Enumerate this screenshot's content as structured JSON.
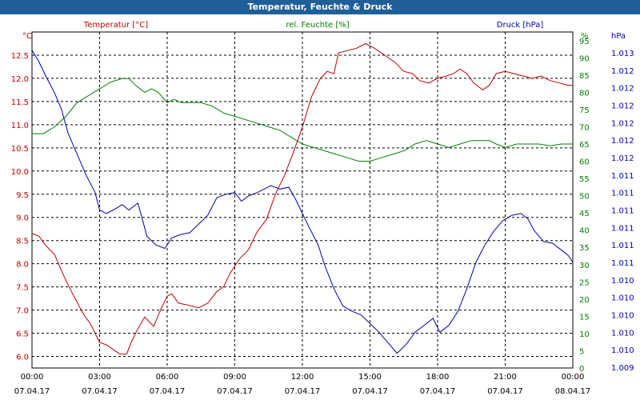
{
  "window": {
    "title": "Temperatur, Feuchte & Druck"
  },
  "colors": {
    "temperature": "#c00000",
    "humidity": "#008000",
    "pressure": "#0000b0",
    "grid": "#000000",
    "titlebar": "#1f5f99"
  },
  "chart_data": {
    "type": "line",
    "title": "Temperatur, Feuchte & Druck",
    "grid": true,
    "x_ticks": [
      {
        "time": "00:00",
        "date": "07.04.17"
      },
      {
        "time": "03:00",
        "date": "07.04.17"
      },
      {
        "time": "06:00",
        "date": "07.04.17"
      },
      {
        "time": "09:00",
        "date": "07.04.17"
      },
      {
        "time": "12:00",
        "date": "07.04.17"
      },
      {
        "time": "15:00",
        "date": "07.04.17"
      },
      {
        "time": "18:00",
        "date": "07.04.17"
      },
      {
        "time": "21:00",
        "date": "07.04.17"
      },
      {
        "time": "00:00",
        "date": "08.04.17"
      }
    ],
    "x_range_hours": [
      0,
      24
    ],
    "axes": {
      "temperature": {
        "unit": "°C",
        "ylim": [
          5.75,
          13.0
        ],
        "ticks": [
          "12.5",
          "12.0",
          "11.5",
          "11.0",
          "10.5",
          "10.0",
          "9.5",
          "9.0",
          "8.5",
          "8.0",
          "7.5",
          "7.0",
          "6.5",
          "6.0"
        ]
      },
      "humidity": {
        "unit": "%",
        "ylim": [
          0,
          97.5
        ],
        "ticks": [
          "95",
          "90",
          "85",
          "80",
          "75",
          "70",
          "65",
          "60",
          "55",
          "50",
          "45",
          "40",
          "35",
          "30",
          "25",
          "20",
          "15",
          "10",
          "5",
          "0"
        ]
      },
      "pressure": {
        "unit": "hPa",
        "ticks": [
          "1.013",
          "1.012",
          "1.012",
          "1.012",
          "1.012",
          "1.012",
          "1.012",
          "1.011",
          "1.011",
          "1.011",
          "1.011",
          "1.011",
          "1.011",
          "1.010",
          "1.010",
          "1.010",
          "1.010",
          "1.010",
          "1.009"
        ]
      }
    },
    "series": [
      {
        "name": "Temperatur [°C]",
        "axis": "temperature",
        "points": [
          [
            0,
            8.65
          ],
          [
            0.3,
            8.6
          ],
          [
            0.6,
            8.4
          ],
          [
            1,
            8.2
          ],
          [
            1.4,
            7.75
          ],
          [
            1.8,
            7.35
          ],
          [
            2.3,
            6.9
          ],
          [
            2.6,
            6.7
          ],
          [
            3.0,
            6.3
          ],
          [
            3.3,
            6.25
          ],
          [
            3.6,
            6.15
          ],
          [
            3.9,
            6.05
          ],
          [
            4.2,
            6.05
          ],
          [
            4.4,
            6.3
          ],
          [
            4.7,
            6.6
          ],
          [
            5.0,
            6.85
          ],
          [
            5.4,
            6.65
          ],
          [
            5.7,
            7.0
          ],
          [
            6.0,
            7.3
          ],
          [
            6.2,
            7.35
          ],
          [
            6.5,
            7.15
          ],
          [
            7.0,
            7.1
          ],
          [
            7.4,
            7.05
          ],
          [
            7.8,
            7.15
          ],
          [
            8.2,
            7.4
          ],
          [
            8.5,
            7.5
          ],
          [
            8.8,
            7.8
          ],
          [
            9.2,
            8.1
          ],
          [
            9.6,
            8.3
          ],
          [
            10.0,
            8.7
          ],
          [
            10.4,
            8.95
          ],
          [
            10.8,
            9.5
          ],
          [
            11.2,
            9.9
          ],
          [
            11.6,
            10.4
          ],
          [
            12.0,
            10.95
          ],
          [
            12.4,
            11.6
          ],
          [
            12.8,
            12.0
          ],
          [
            13.1,
            12.15
          ],
          [
            13.4,
            12.1
          ],
          [
            13.6,
            12.55
          ],
          [
            14.0,
            12.6
          ],
          [
            14.4,
            12.65
          ],
          [
            14.8,
            12.75
          ],
          [
            15.2,
            12.65
          ],
          [
            15.5,
            12.55
          ],
          [
            15.8,
            12.45
          ],
          [
            16.1,
            12.35
          ],
          [
            16.5,
            12.15
          ],
          [
            16.9,
            12.1
          ],
          [
            17.2,
            11.95
          ],
          [
            17.6,
            11.9
          ],
          [
            18.0,
            12.0
          ],
          [
            18.4,
            12.05
          ],
          [
            18.7,
            12.1
          ],
          [
            19.0,
            12.2
          ],
          [
            19.3,
            12.1
          ],
          [
            19.6,
            11.9
          ],
          [
            20.0,
            11.75
          ],
          [
            20.3,
            11.85
          ],
          [
            20.6,
            12.1
          ],
          [
            21.0,
            12.15
          ],
          [
            21.4,
            12.1
          ],
          [
            21.8,
            12.05
          ],
          [
            22.2,
            12.0
          ],
          [
            22.6,
            12.05
          ],
          [
            23.0,
            11.95
          ],
          [
            23.4,
            11.9
          ],
          [
            23.8,
            11.85
          ],
          [
            24,
            11.85
          ]
        ]
      },
      {
        "name": "rel. Feuchte [%]",
        "axis": "humidity",
        "points": [
          [
            0,
            68
          ],
          [
            0.5,
            68
          ],
          [
            1,
            70
          ],
          [
            1.5,
            73
          ],
          [
            2,
            77
          ],
          [
            2.5,
            79
          ],
          [
            3,
            81
          ],
          [
            3.5,
            83
          ],
          [
            4,
            84
          ],
          [
            4.3,
            84
          ],
          [
            4.6,
            82
          ],
          [
            5,
            80
          ],
          [
            5.3,
            81
          ],
          [
            5.6,
            80
          ],
          [
            6,
            77
          ],
          [
            6.3,
            78
          ],
          [
            6.6,
            77
          ],
          [
            7,
            77
          ],
          [
            7.5,
            77
          ],
          [
            8,
            76
          ],
          [
            8.5,
            74
          ],
          [
            9,
            73
          ],
          [
            9.5,
            72
          ],
          [
            10,
            71
          ],
          [
            10.5,
            70
          ],
          [
            11,
            69
          ],
          [
            11.5,
            67
          ],
          [
            12,
            65
          ],
          [
            12.5,
            64
          ],
          [
            13,
            63
          ],
          [
            13.5,
            62
          ],
          [
            14,
            61
          ],
          [
            14.5,
            60
          ],
          [
            15,
            60
          ],
          [
            15.5,
            61
          ],
          [
            16,
            62
          ],
          [
            16.5,
            63
          ],
          [
            17,
            65
          ],
          [
            17.5,
            66
          ],
          [
            18,
            65
          ],
          [
            18.5,
            64
          ],
          [
            19,
            65
          ],
          [
            19.5,
            66
          ],
          [
            20,
            66
          ],
          [
            20.3,
            66
          ],
          [
            20.6,
            65
          ],
          [
            21,
            64
          ],
          [
            21.5,
            65
          ],
          [
            22,
            65
          ],
          [
            22.5,
            65
          ],
          [
            23,
            64.5
          ],
          [
            23.5,
            65
          ],
          [
            24,
            65
          ]
        ]
      },
      {
        "name": "Druck [hPa]",
        "axis": "pressure",
        "points_in_tick_steps_from_top": [
          [
            0,
            -0.15
          ],
          [
            0.3,
            0.5
          ],
          [
            0.6,
            1.3
          ],
          [
            1.0,
            2.3
          ],
          [
            1.3,
            3.2
          ],
          [
            1.6,
            4.6
          ],
          [
            2.0,
            5.8
          ],
          [
            2.4,
            7.0
          ],
          [
            2.8,
            8.0
          ],
          [
            3.0,
            9.0
          ],
          [
            3.3,
            9.2
          ],
          [
            3.6,
            9.0
          ],
          [
            4.0,
            8.7
          ],
          [
            4.3,
            9.0
          ],
          [
            4.7,
            8.6
          ],
          [
            5.1,
            10.5
          ],
          [
            5.5,
            11.0
          ],
          [
            5.9,
            11.2
          ],
          [
            6.2,
            10.6
          ],
          [
            6.6,
            10.4
          ],
          [
            7.0,
            10.3
          ],
          [
            7.4,
            9.8
          ],
          [
            7.8,
            9.3
          ],
          [
            8.2,
            8.3
          ],
          [
            8.6,
            8.1
          ],
          [
            9.0,
            8.0
          ],
          [
            9.3,
            8.5
          ],
          [
            9.6,
            8.2
          ],
          [
            10.0,
            8.0
          ],
          [
            10.3,
            7.8
          ],
          [
            10.6,
            7.6
          ],
          [
            11.0,
            7.8
          ],
          [
            11.4,
            7.7
          ],
          [
            11.7,
            8.4
          ],
          [
            12.0,
            9.2
          ],
          [
            12.3,
            10.0
          ],
          [
            12.7,
            11.0
          ],
          [
            13.0,
            12.2
          ],
          [
            13.4,
            13.5
          ],
          [
            13.8,
            14.5
          ],
          [
            14.2,
            14.8
          ],
          [
            14.6,
            15.0
          ],
          [
            15.0,
            15.5
          ],
          [
            15.4,
            16.0
          ],
          [
            15.8,
            16.6
          ],
          [
            16.2,
            17.2
          ],
          [
            16.6,
            16.7
          ],
          [
            17.0,
            16.0
          ],
          [
            17.4,
            15.6
          ],
          [
            17.8,
            15.2
          ],
          [
            18.1,
            16.0
          ],
          [
            18.5,
            15.6
          ],
          [
            18.9,
            14.8
          ],
          [
            19.3,
            13.5
          ],
          [
            19.7,
            12.0
          ],
          [
            20.1,
            11.0
          ],
          [
            20.5,
            10.2
          ],
          [
            20.9,
            9.6
          ],
          [
            21.3,
            9.3
          ],
          [
            21.7,
            9.2
          ],
          [
            22.0,
            9.5
          ],
          [
            22.3,
            10.2
          ],
          [
            22.7,
            10.8
          ],
          [
            23.1,
            10.9
          ],
          [
            23.5,
            11.3
          ],
          [
            23.8,
            11.6
          ],
          [
            24.0,
            12.0
          ]
        ]
      }
    ]
  }
}
